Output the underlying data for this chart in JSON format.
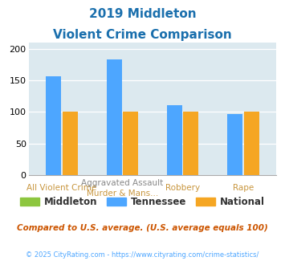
{
  "title_line1": "2019 Middleton",
  "title_line2": "Violent Crime Comparison",
  "groups": [
    {
      "top": "",
      "bot": "All Violent Crime",
      "middleton": 0,
      "tennessee": 156,
      "national": 100
    },
    {
      "top": "Aggravated Assault",
      "bot": "Murder & Mans...",
      "middleton": 0,
      "tennessee": 183,
      "national": 100
    },
    {
      "top": "",
      "bot": "Robbery",
      "middleton": 0,
      "tennessee": 110,
      "national": 100
    },
    {
      "top": "",
      "bot": "Rape",
      "middleton": 0,
      "tennessee": 97,
      "national": 100
    }
  ],
  "ylim": [
    0,
    210
  ],
  "yticks": [
    0,
    50,
    100,
    150,
    200
  ],
  "color_middleton": "#8dc63f",
  "color_tennessee": "#4da6ff",
  "color_national": "#f5a623",
  "bg_color": "#dce9ef",
  "title_color": "#1a6fad",
  "label_top_color": "#888888",
  "label_bot_color": "#c8963e",
  "legend_label_color": "#333333",
  "footer_text": "Compared to U.S. average. (U.S. average equals 100)",
  "footer_color": "#cc5500",
  "copyright_text": "© 2025 CityRating.com - https://www.cityrating.com/crime-statistics/",
  "copyright_color": "#4da6ff",
  "bar_width": 0.25,
  "title_fontsize": 11,
  "ylabel_fontsize": 8,
  "xlabel_fontsize": 7.5,
  "legend_fontsize": 8.5,
  "footer_fontsize": 7.5,
  "copyright_fontsize": 6
}
